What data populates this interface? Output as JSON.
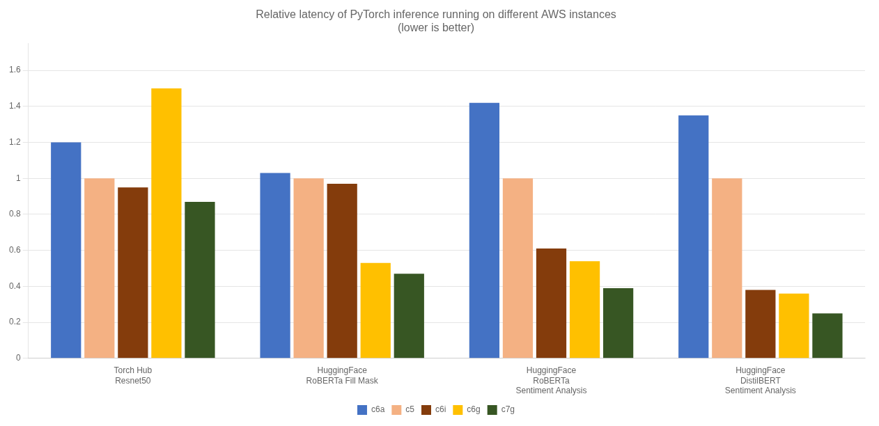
{
  "chart_data": {
    "type": "bar",
    "title": "Relative latency of PyTorch inference running on different AWS instances\n(lower is better)",
    "categories": [
      "Torch Hub\nResnet50",
      "HuggingFace\nRoBERTa Fill Mask",
      "HuggingFace\nRoBERTa\nSentiment Analysis",
      "HuggingFace\nDistilBERT\nSentiment Analysis"
    ],
    "series": [
      {
        "name": "c6a",
        "color": "#4472C4",
        "values": [
          1.2,
          1.03,
          1.42,
          1.35
        ]
      },
      {
        "name": "c5",
        "color": "#F4B183",
        "values": [
          1.0,
          1.0,
          1.0,
          1.0
        ]
      },
      {
        "name": "c6i",
        "color": "#843C0C",
        "values": [
          0.95,
          0.97,
          0.61,
          0.38
        ]
      },
      {
        "name": "c6g",
        "color": "#FFC000",
        "values": [
          1.5,
          0.53,
          0.54,
          0.36
        ]
      },
      {
        "name": "c7g",
        "color": "#375623",
        "values": [
          0.87,
          0.47,
          0.39,
          0.25
        ]
      }
    ],
    "ylim": [
      0,
      1.75
    ],
    "yticks": [
      0,
      0.2,
      0.4,
      0.6,
      0.8,
      1,
      1.2,
      1.4,
      1.6
    ],
    "grid": true,
    "legend": "bottom"
  }
}
